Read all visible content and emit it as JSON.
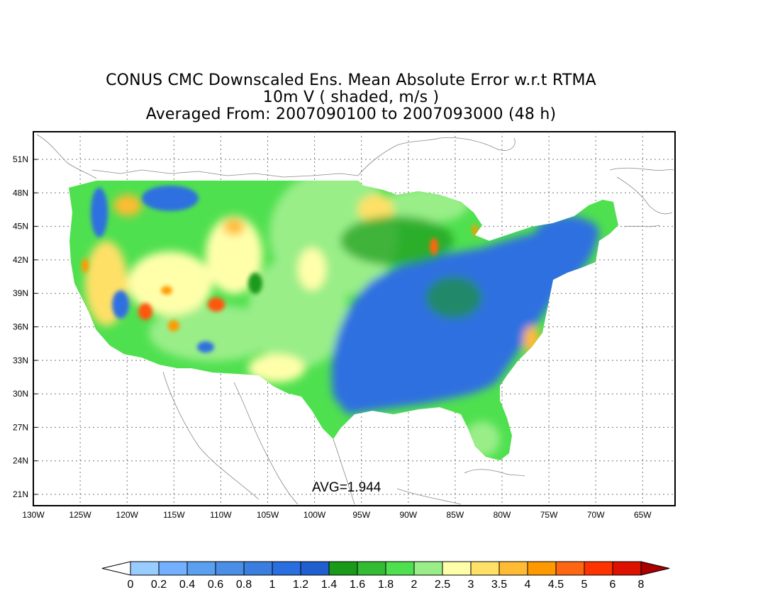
{
  "title": {
    "line1": "CONUS CMC Downscaled Ens. Mean Absolute Error w.r.t RTMA",
    "line2": "10m V ( shaded, m/s )",
    "line3": "Averaged From: 2007090100 to 2007093000 (48 h)"
  },
  "annotation": "AVG=1.944",
  "lat_ticks": [
    "51N",
    "48N",
    "45N",
    "42N",
    "39N",
    "36N",
    "33N",
    "30N",
    "27N",
    "24N",
    "21N"
  ],
  "lon_ticks": [
    "130W",
    "125W",
    "120W",
    "115W",
    "110W",
    "105W",
    "100W",
    "95W",
    "90W",
    "85W",
    "80W",
    "75W",
    "70W",
    "65W"
  ],
  "colorbar": {
    "labels": [
      "0",
      "0.2",
      "0.4",
      "0.6",
      "0.8",
      "1",
      "1.2",
      "1.4",
      "1.6",
      "1.8",
      "2",
      "2.5",
      "3",
      "3.5",
      "4",
      "4.5",
      "5",
      "6",
      "8"
    ],
    "colors": [
      "#ffffff",
      "#99ccff",
      "#73b0ff",
      "#5a9ff0",
      "#4a8ee6",
      "#3a7fe0",
      "#2a6fe0",
      "#1f5fcf",
      "#1a9a1a",
      "#33bb33",
      "#4fe04f",
      "#99ee88",
      "#ffffaa",
      "#ffe066",
      "#ffbb33",
      "#ff9900",
      "#ff6611",
      "#ff3300",
      "#dd1100",
      "#aa0000"
    ]
  },
  "map_colors": {
    "blue": "#2f6fe0",
    "dark_green": "#1a9a1a",
    "green": "#4fe04f",
    "light_green": "#99ee88",
    "pale_yellow": "#ffffaa",
    "orange": "#ffbb33",
    "red": "#ff5511"
  }
}
